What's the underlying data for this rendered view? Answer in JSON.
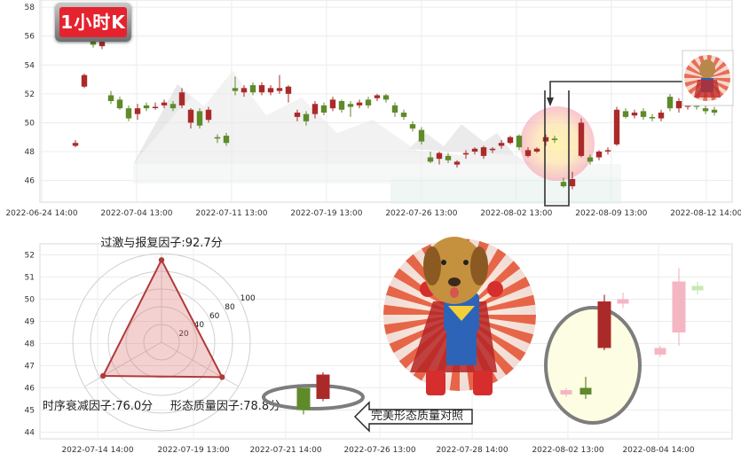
{
  "badge": {
    "label": "1小时K"
  },
  "callout": {
    "label": "完美形态质量对照"
  },
  "radar": {
    "ticks": [
      "20",
      "40",
      "60",
      "80",
      "100"
    ],
    "factors": [
      {
        "label": "过激与报复因子:92.7分",
        "value": 92.7
      },
      {
        "label": "形态质量因子:78.8分",
        "value": 78.8
      },
      {
        "label": "时序衰减因子:76.0分",
        "value": 76.0
      }
    ],
    "max": 100
  },
  "colors": {
    "up": "#aa2a2a",
    "down": "#5f8a2a",
    "ghost_up": "#f5b6c4",
    "ghost_down": "#c9e8b4",
    "radar_stroke": "#b03a38",
    "radar_fill": "#e07a7a"
  },
  "chart_data": [
    {
      "type": "candlestick",
      "title": "",
      "ylim": [
        44.5,
        58.5
      ],
      "yticks": [
        46,
        48,
        50,
        52,
        54,
        56,
        58
      ],
      "xticks": [
        "2022-06-24 14:00",
        "2022-07-04 13:00",
        "2022-07-11 13:00",
        "2022-07-19 13:00",
        "2022-07-26 13:00",
        "2022-08-02 13:00",
        "2022-08-09 13:00",
        "2022-08-12 14:00"
      ],
      "series": [
        {
          "values": [
            [
              48.4,
              48.6,
              48.3,
              48.8
            ],
            [
              52.5,
              53.3,
              52.4,
              53.4
            ],
            [
              56.0,
              55.4,
              55.2,
              56.3
            ],
            [
              55.3,
              55.6,
              55.1,
              56.0
            ],
            [
              51.9,
              51.5,
              51.3,
              52.2
            ],
            [
              51.6,
              51.0,
              50.9,
              51.8
            ],
            [
              51.0,
              50.3,
              50.1,
              51.2
            ],
            [
              50.6,
              51.0,
              50.2,
              51.3
            ],
            [
              51.2,
              51.0,
              50.8,
              51.4
            ],
            [
              51.1,
              51.1,
              50.9,
              51.4
            ],
            [
              51.2,
              51.4,
              51.0,
              51.6
            ],
            [
              51.3,
              51.0,
              50.8,
              51.5
            ],
            [
              51.2,
              52.1,
              51.0,
              52.4
            ],
            [
              50.0,
              50.9,
              49.6,
              51.0
            ],
            [
              50.8,
              49.8,
              49.6,
              51.0
            ],
            [
              50.2,
              50.9,
              50.0,
              51.1
            ],
            [
              49.0,
              48.9,
              48.6,
              49.2
            ],
            [
              49.1,
              48.6,
              48.4,
              49.3
            ],
            [
              52.4,
              52.2,
              51.9,
              53.2
            ],
            [
              52.1,
              52.4,
              51.8,
              52.6
            ],
            [
              52.6,
              52.1,
              51.9,
              52.8
            ],
            [
              52.1,
              52.6,
              51.9,
              52.8
            ],
            [
              52.1,
              52.4,
              51.9,
              52.6
            ],
            [
              52.2,
              52.4,
              52.0,
              53.3
            ],
            [
              52.0,
              52.5,
              51.4,
              52.6
            ],
            [
              50.4,
              50.7,
              50.1,
              50.9
            ],
            [
              50.6,
              50.1,
              49.8,
              50.8
            ],
            [
              50.6,
              51.3,
              50.3,
              51.5
            ],
            [
              51.2,
              50.7,
              50.5,
              51.4
            ],
            [
              51.0,
              51.6,
              50.8,
              51.8
            ],
            [
              51.5,
              50.9,
              50.7,
              51.6
            ],
            [
              51.3,
              51.1,
              50.4,
              51.5
            ],
            [
              51.2,
              51.4,
              51.0,
              51.6
            ],
            [
              51.6,
              51.2,
              51.0,
              51.8
            ],
            [
              51.7,
              51.9,
              51.5,
              52.0
            ],
            [
              51.9,
              51.6,
              51.4,
              52.0
            ],
            [
              51.2,
              50.7,
              50.4,
              51.4
            ],
            [
              50.7,
              50.4,
              50.2,
              50.9
            ],
            [
              49.9,
              49.6,
              49.4,
              50.1
            ],
            [
              49.5,
              48.7,
              48.5,
              49.7
            ],
            [
              47.6,
              47.3,
              47.2,
              48.0
            ],
            [
              47.5,
              47.9,
              47.1,
              48.0
            ],
            [
              47.7,
              47.4,
              47.2,
              47.9
            ],
            [
              47.1,
              47.3,
              46.9,
              47.4
            ],
            [
              47.8,
              47.9,
              47.5,
              48.1
            ],
            [
              48.0,
              48.2,
              47.8,
              48.3
            ],
            [
              47.7,
              48.3,
              47.5,
              48.4
            ],
            [
              48.1,
              48.2,
              47.9,
              48.3
            ],
            [
              48.4,
              48.6,
              48.2,
              48.8
            ],
            [
              48.6,
              49.0,
              48.5,
              49.1
            ],
            [
              49.1,
              48.3,
              48.1,
              49.2
            ],
            [
              47.7,
              48.1,
              47.6,
              48.3
            ],
            [
              48.0,
              48.2,
              47.9,
              48.3
            ],
            [
              48.7,
              49.0,
              48.4,
              49.2
            ],
            [
              48.9,
              48.8,
              48.6,
              49.1
            ],
            [
              45.9,
              45.6,
              45.5,
              46.2
            ],
            [
              45.6,
              46.1,
              45.4,
              46.6
            ],
            [
              47.7,
              50.0,
              47.6,
              50.3
            ],
            [
              47.6,
              47.3,
              47.1,
              47.8
            ],
            [
              47.6,
              48.0,
              47.4,
              48.1
            ],
            [
              48.1,
              48.1,
              47.8,
              48.3
            ],
            [
              48.5,
              50.9,
              48.4,
              51.1
            ],
            [
              50.8,
              50.4,
              50.3,
              51.0
            ],
            [
              50.5,
              50.7,
              50.3,
              50.9
            ],
            [
              50.8,
              50.4,
              50.2,
              51.0
            ],
            [
              50.4,
              50.3,
              50.1,
              50.6
            ],
            [
              50.3,
              50.7,
              50.1,
              50.9
            ],
            [
              51.8,
              51.0,
              50.8,
              52.0
            ],
            [
              51.0,
              51.5,
              50.7,
              51.7
            ],
            [
              51.1,
              51.6,
              50.9,
              51.8
            ],
            [
              51.6,
              51.1,
              50.9,
              52.1
            ],
            [
              51.0,
              50.8,
              50.6,
              51.2
            ],
            [
              50.9,
              50.7,
              50.5,
              51.1
            ]
          ],
          "note": "OHLC"
        }
      ]
    },
    {
      "type": "candlestick",
      "title": "",
      "ylim": [
        43.7,
        52.5
      ],
      "yticks": [
        44,
        45,
        46,
        47,
        48,
        49,
        50,
        51,
        52
      ],
      "xticks": [
        "2022-07-14 14:00",
        "2022-07-19 13:00",
        "2022-07-21 14:00",
        "2022-07-26 13:00",
        "2022-07-28 14:00",
        "2022-08-02 13:00",
        "2022-08-04 14:00"
      ],
      "series": [
        {
          "values": [
            [
              46.0,
              45.0,
              44.8,
              46.0
            ],
            [
              45.5,
              46.6,
              45.4,
              46.7
            ],
            [
              45.7,
              45.9,
              45.6,
              46.0
            ],
            [
              45.7,
              46.0,
              45.5,
              46.5
            ],
            [
              47.8,
              49.9,
              47.7,
              50.2
            ],
            [
              49.8,
              50.0,
              49.6,
              50.3
            ],
            [
              47.5,
              47.8,
              47.4,
              47.9
            ],
            [
              48.5,
              50.8,
              47.9,
              51.4
            ],
            [
              50.6,
              50.4,
              50.2,
              50.8
            ]
          ],
          "note": "OHLC"
        }
      ]
    }
  ]
}
